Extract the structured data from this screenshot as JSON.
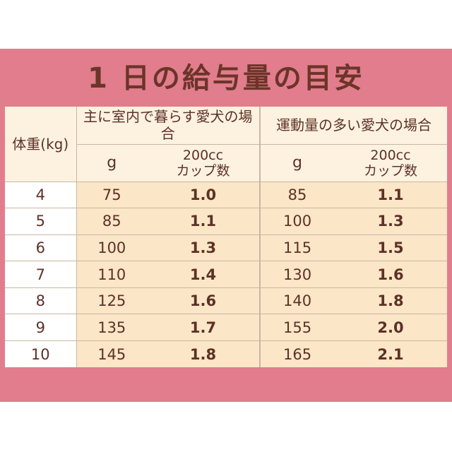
{
  "title": "1 日の給与量の目安",
  "table": {
    "weight_header": "体重(kg)",
    "indoor_header": "主に室内で暮らす愛犬の場合",
    "active_header": "運動量の多い愛犬の場合",
    "gram_header": "g",
    "cup_header_line1": "200cc",
    "cup_header_line2": "カップ数",
    "rows": [
      {
        "weight": "4",
        "indoor_g": "75",
        "indoor_cup": "1.0",
        "active_g": "85",
        "active_cup": "1.1"
      },
      {
        "weight": "5",
        "indoor_g": "85",
        "indoor_cup": "1.1",
        "active_g": "100",
        "active_cup": "1.3"
      },
      {
        "weight": "6",
        "indoor_g": "100",
        "indoor_cup": "1.3",
        "active_g": "115",
        "active_cup": "1.5"
      },
      {
        "weight": "7",
        "indoor_g": "110",
        "indoor_cup": "1.4",
        "active_g": "130",
        "active_cup": "1.6"
      },
      {
        "weight": "8",
        "indoor_g": "125",
        "indoor_cup": "1.6",
        "active_g": "140",
        "active_cup": "1.8"
      },
      {
        "weight": "9",
        "indoor_g": "135",
        "indoor_cup": "1.7",
        "active_g": "155",
        "active_cup": "2.0"
      },
      {
        "weight": "10",
        "indoor_g": "145",
        "indoor_cup": "1.8",
        "active_g": "165",
        "active_cup": "2.1"
      }
    ]
  }
}
